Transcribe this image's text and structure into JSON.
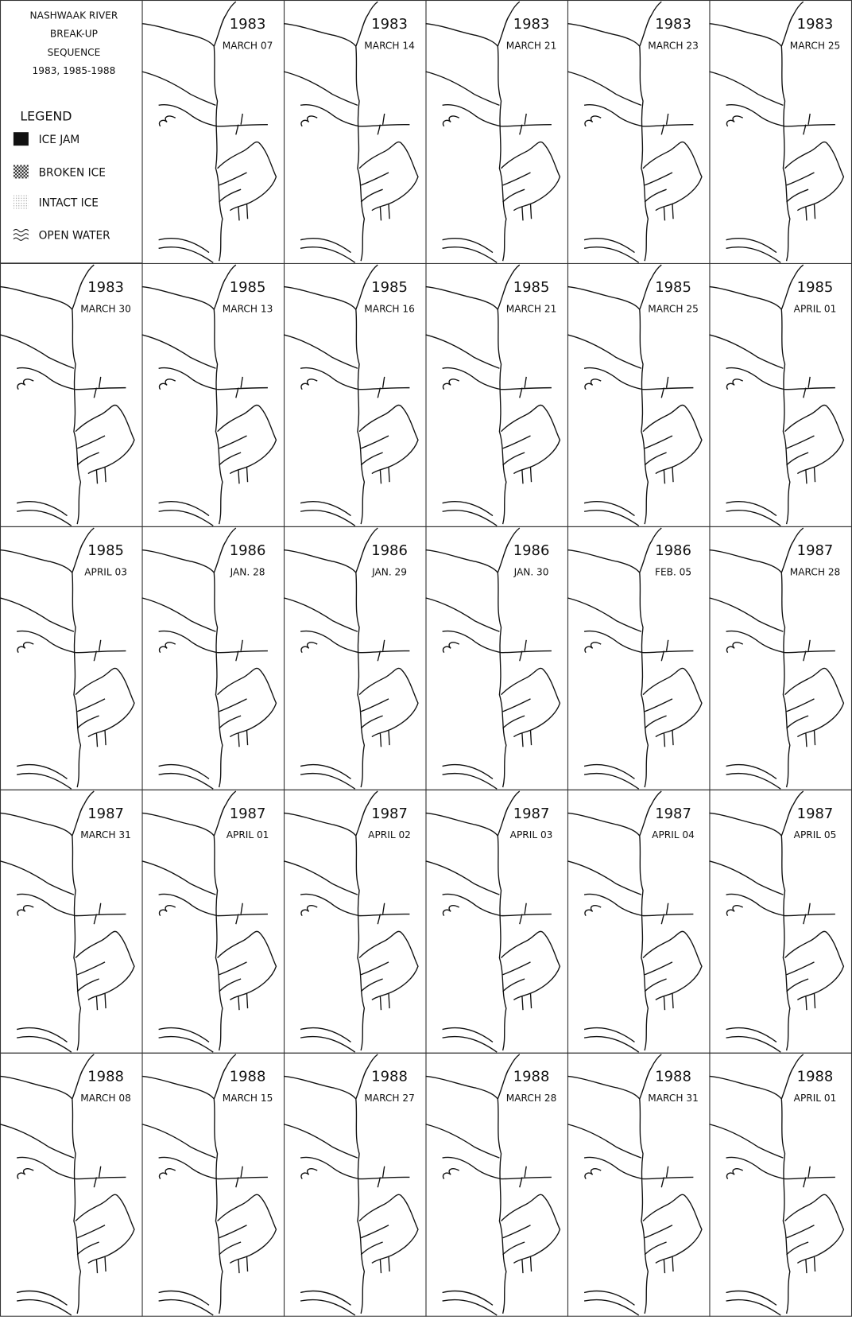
{
  "header": {
    "title_lines": [
      "NASHWAAK RIVER",
      "BREAK-UP",
      "SEQUENCE",
      "1983, 1985-1988"
    ]
  },
  "legend": {
    "title": "LEGEND",
    "items": [
      "ICE JAM",
      "BROKEN ICE",
      "INTACT ICE",
      "OPEN WATER"
    ]
  },
  "panels": [
    {
      "year": "1983",
      "date": "MARCH 07"
    },
    {
      "year": "1983",
      "date": "MARCH 14"
    },
    {
      "year": "1983",
      "date": "MARCH 21"
    },
    {
      "year": "1983",
      "date": "MARCH 23"
    },
    {
      "year": "1983",
      "date": "MARCH 25"
    },
    {
      "year": "1983",
      "date": "MARCH 30"
    },
    {
      "year": "1985",
      "date": "MARCH 13"
    },
    {
      "year": "1985",
      "date": "MARCH 16"
    },
    {
      "year": "1985",
      "date": "MARCH 21"
    },
    {
      "year": "1985",
      "date": "MARCH 25"
    },
    {
      "year": "1985",
      "date": "APRIL 01"
    },
    {
      "year": "1985",
      "date": "APRIL 03"
    },
    {
      "year": "1986",
      "date": "JAN. 28"
    },
    {
      "year": "1986",
      "date": "JAN. 29"
    },
    {
      "year": "1986",
      "date": "JAN. 30"
    },
    {
      "year": "1986",
      "date": "FEB. 05"
    },
    {
      "year": "1987",
      "date": "MARCH 28"
    },
    {
      "year": "1987",
      "date": "MARCH 31"
    },
    {
      "year": "1987",
      "date": "APRIL 01"
    },
    {
      "year": "1987",
      "date": "APRIL 02"
    },
    {
      "year": "1987",
      "date": "APRIL 03"
    },
    {
      "year": "1987",
      "date": "APRIL 04"
    },
    {
      "year": "1987",
      "date": "APRIL 05"
    },
    {
      "year": "1988",
      "date": "MARCH 08"
    },
    {
      "year": "1988",
      "date": "MARCH 15"
    },
    {
      "year": "1988",
      "date": "MARCH 27"
    },
    {
      "year": "1988",
      "date": "MARCH 28"
    },
    {
      "year": "1988",
      "date": "MARCH 31"
    },
    {
      "year": "1988",
      "date": "APRIL 01"
    }
  ]
}
